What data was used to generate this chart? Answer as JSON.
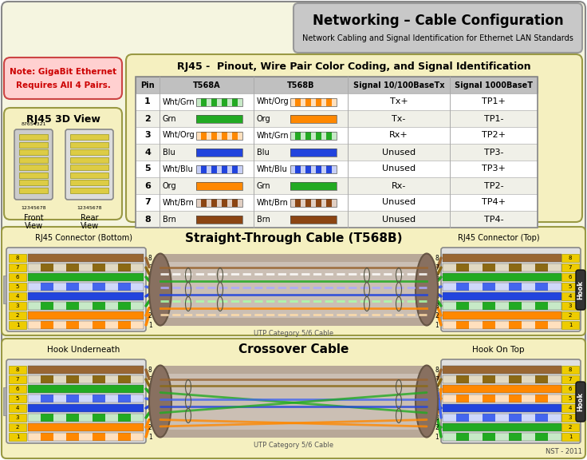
{
  "title": "Networking – Cable Configuration",
  "subtitle": "Network Cabling and Signal Identification for Ethernet LAN Standards",
  "bg_color": "#f5f5e0",
  "outer_bg": "#ffffff",
  "title_box_color": "#c8c8c8",
  "note_box_color": "#ffd0d0",
  "rj45_box_color": "#f5f0c0",
  "table_box_color": "#f5f0c0",
  "cable_box_color": "#f5f0c0",
  "table_title": "RJ45 -  Pinout, Wire Pair Color Coding, and Signal Identification",
  "table_headers": [
    "Pin",
    "T568A",
    "T568B",
    "Signal 10/100BaseTx",
    "Signal 1000BaseT"
  ],
  "table_rows": [
    {
      "pin": "1",
      "t568a_label": "Wht/Grn",
      "t568a_color": "#22aa22",
      "t568a_stripe": true,
      "t568b_label": "Wht/Org",
      "t568b_color": "#ff8800",
      "t568b_stripe": true,
      "signal100": "Tx+",
      "signal1000": "TP1+"
    },
    {
      "pin": "2",
      "t568a_label": "Grn",
      "t568a_color": "#22aa22",
      "t568a_stripe": false,
      "t568b_label": "Org",
      "t568b_color": "#ff8800",
      "t568b_stripe": false,
      "signal100": "Tx-",
      "signal1000": "TP1-"
    },
    {
      "pin": "3",
      "t568a_label": "Wht/Org",
      "t568a_color": "#ff8800",
      "t568a_stripe": true,
      "t568b_label": "Wht/Grn",
      "t568b_color": "#22aa22",
      "t568b_stripe": true,
      "signal100": "Rx+",
      "signal1000": "TP2+"
    },
    {
      "pin": "4",
      "t568a_label": "Blu",
      "t568a_color": "#2244dd",
      "t568a_stripe": false,
      "t568b_label": "Blu",
      "t568b_color": "#2244dd",
      "t568b_stripe": false,
      "signal100": "Unused",
      "signal1000": "TP3-"
    },
    {
      "pin": "5",
      "t568a_label": "Wht/Blu",
      "t568a_color": "#2244dd",
      "t568a_stripe": true,
      "t568b_label": "Wht/Blu",
      "t568b_color": "#2244dd",
      "t568b_stripe": true,
      "signal100": "Unused",
      "signal1000": "TP3+"
    },
    {
      "pin": "6",
      "t568a_label": "Org",
      "t568a_color": "#ff8800",
      "t568a_stripe": false,
      "t568b_label": "Grn",
      "t568b_color": "#22aa22",
      "t568b_stripe": false,
      "signal100": "Rx-",
      "signal1000": "TP2-"
    },
    {
      "pin": "7",
      "t568a_label": "Wht/Brn",
      "t568a_color": "#8B4513",
      "t568a_stripe": true,
      "t568b_label": "Wht/Brn",
      "t568b_color": "#8B4513",
      "t568b_stripe": true,
      "signal100": "Unused",
      "signal1000": "TP4+"
    },
    {
      "pin": "8",
      "t568a_label": "Brn",
      "t568a_color": "#8B4513",
      "t568a_stripe": false,
      "t568b_label": "Brn",
      "t568b_color": "#8B4513",
      "t568b_stripe": false,
      "signal100": "Unused",
      "signal1000": "TP4-"
    }
  ],
  "straight_title": "Straight-Through Cable (T568B)",
  "crossover_title": "Crossover Cable",
  "straight_left_label": "RJ45 Connector (Bottom)",
  "straight_right_label": "RJ45 Connector (Top)",
  "hook_underneath": "Hook Underneath",
  "hook_on_top": "Hook On Top",
  "utp_label": "UTP Category 5/6 Cable",
  "nst_label": "NST - 2011",
  "rj45_3d_title": "RJ45 3D View",
  "front_view": "Front\nView",
  "rear_view": "Rear\nView",
  "front_nums": "12345678",
  "rear_nums": "87654321"
}
